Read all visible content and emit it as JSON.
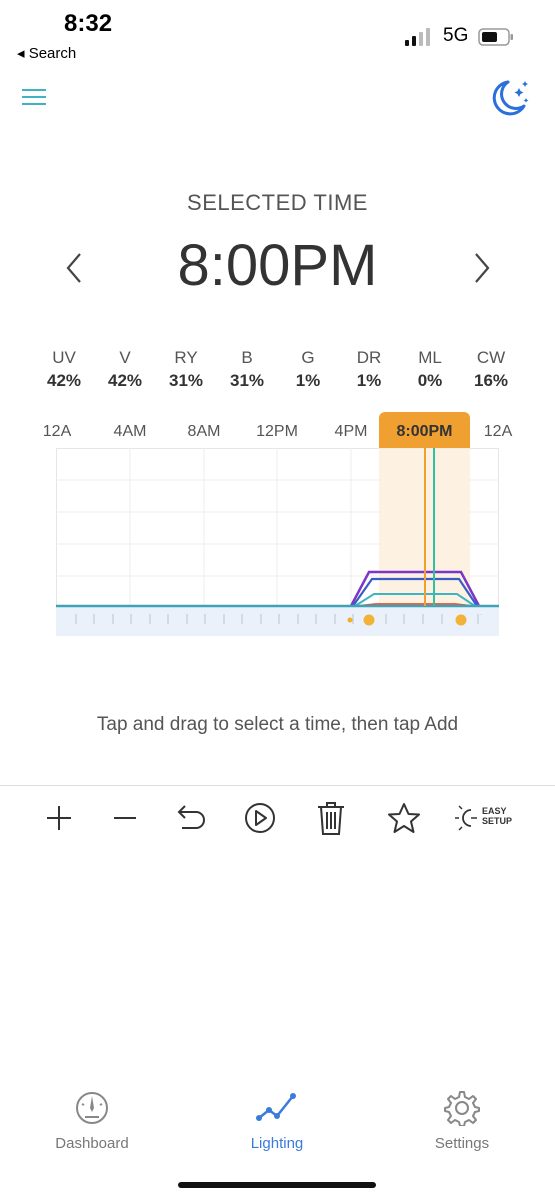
{
  "status": {
    "time": "8:32",
    "back_label": "◂ Search",
    "network": "5G"
  },
  "header": {
    "menu_icon": "hamburger-icon",
    "mode_icon": "moon-stars-icon"
  },
  "selected": {
    "label": "SELECTED TIME",
    "time": "8:00PM"
  },
  "channels": [
    {
      "name": "UV",
      "value": "42%"
    },
    {
      "name": "V",
      "value": "42%"
    },
    {
      "name": "RY",
      "value": "31%"
    },
    {
      "name": "B",
      "value": "31%"
    },
    {
      "name": "G",
      "value": "1%"
    },
    {
      "name": "DR",
      "value": "1%"
    },
    {
      "name": "ML",
      "value": "0%"
    },
    {
      "name": "CW",
      "value": "16%"
    }
  ],
  "timeline": {
    "labels": [
      "12A",
      "4AM",
      "8AM",
      "12PM",
      "4PM",
      "8:00PM",
      "12A"
    ],
    "colors": {
      "selection": "#f0a031",
      "purple": "#7b35c8",
      "blue": "#3b5cc7",
      "teal": "#3fb3c4",
      "red": "#e0533b",
      "green": "#31c0a0",
      "baseline": "#3fa3b8"
    }
  },
  "hint": "Tap and drag to select a time, then tap Add",
  "toolbar": {
    "items": [
      "add-icon",
      "remove-icon",
      "undo-icon",
      "play-icon",
      "trash-icon",
      "star-icon",
      "easy-setup-icon"
    ],
    "easy_setup_line1": "EASY",
    "easy_setup_line2": "SETUP"
  },
  "nav": [
    {
      "label": "Dashboard",
      "icon": "dashboard-gauge-icon",
      "active": false
    },
    {
      "label": "Lighting",
      "icon": "lighting-graph-icon",
      "active": true
    },
    {
      "label": "Settings",
      "icon": "gear-icon",
      "active": false
    }
  ]
}
